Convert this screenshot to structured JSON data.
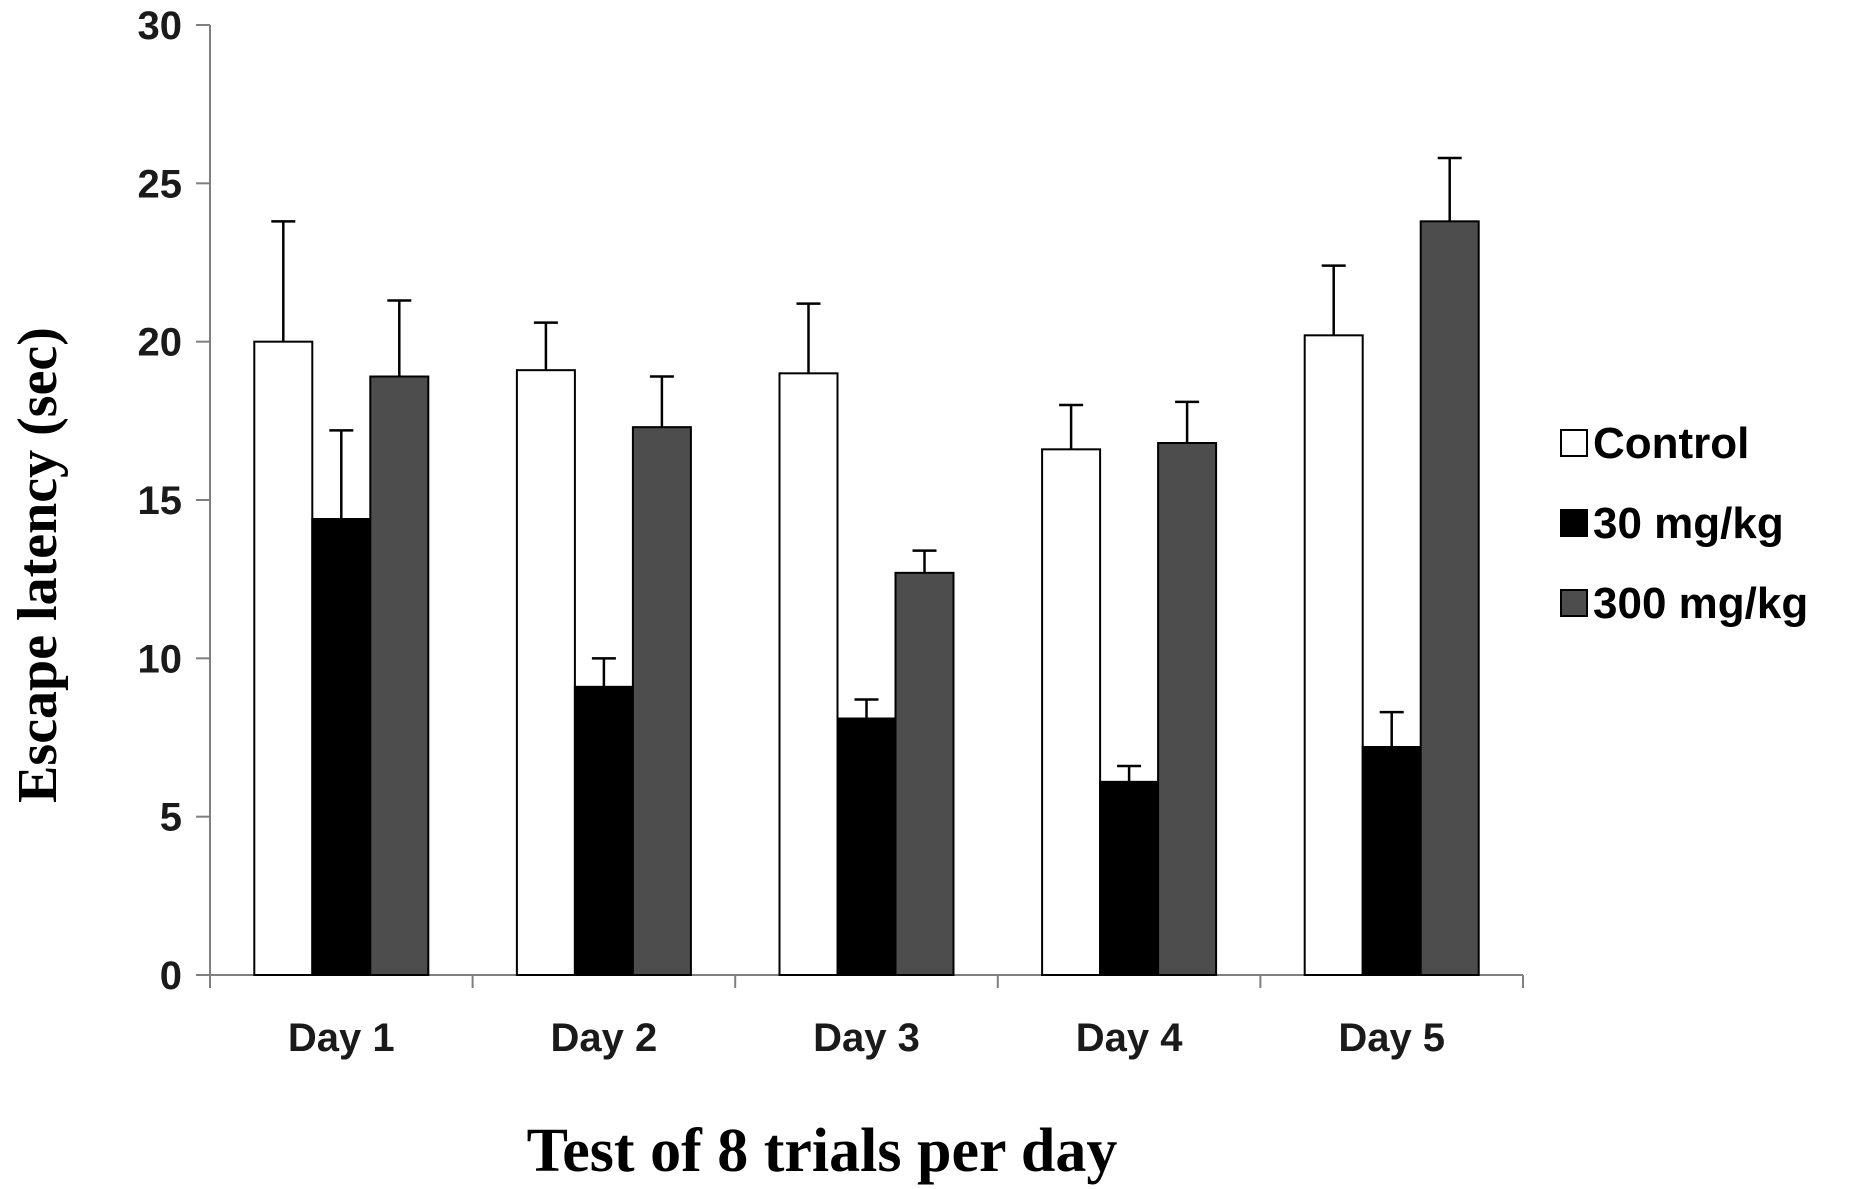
{
  "chart_data": {
    "type": "bar",
    "categories": [
      "Day 1",
      "Day 2",
      "Day 3",
      "Day 4",
      "Day 5"
    ],
    "series": [
      {
        "name": "Control",
        "color": "#ffffff",
        "values": [
          20.0,
          19.1,
          19.0,
          16.6,
          20.2
        ],
        "errors": [
          3.8,
          1.5,
          2.2,
          1.4,
          2.2
        ]
      },
      {
        "name": "30 mg/kg",
        "color": "#000000",
        "values": [
          14.4,
          9.1,
          8.1,
          6.1,
          7.2
        ],
        "errors": [
          2.8,
          0.9,
          0.6,
          0.5,
          1.1
        ]
      },
      {
        "name": "300 mg/kg",
        "color": "#4d4d4d",
        "values": [
          18.9,
          17.3,
          12.7,
          16.8,
          23.8
        ],
        "errors": [
          2.4,
          1.6,
          0.7,
          1.3,
          2.0
        ]
      }
    ],
    "xlabel": "Test of 8 trials per day",
    "ylabel": "Escape latency (sec)",
    "ylim": [
      0,
      30
    ],
    "yticks": [
      0,
      5,
      10,
      15,
      20,
      25,
      30
    ],
    "grid": false,
    "legend": "right"
  }
}
